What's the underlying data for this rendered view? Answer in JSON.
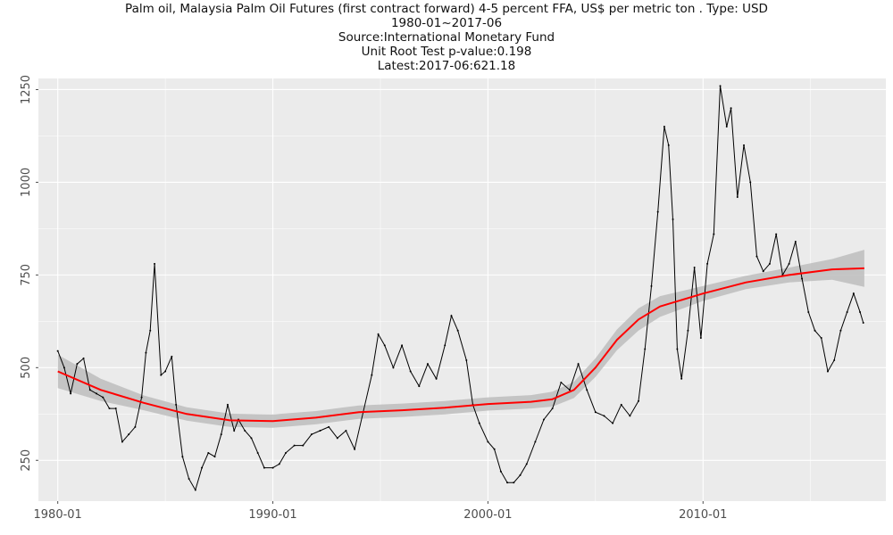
{
  "chart_data": {
    "type": "line",
    "title_lines": [
      "Palm oil, Malaysia Palm Oil Futures (first contract forward) 4-5 percent FFA, US$ per metric ton . Type: USD",
      "1980-01~2017-06",
      "Source:International Monetary Fund",
      "Unit Root Test p-value:0.198",
      "Latest:2017-06:621.18"
    ],
    "xlabel": "",
    "ylabel": "",
    "x_ticks": [
      "1980-01",
      "1990-01",
      "2000-01",
      "2010-01"
    ],
    "y_ticks": [
      250,
      500,
      750,
      1000,
      1250
    ],
    "xlim": [
      1979.1,
      2018.5
    ],
    "ylim": [
      140,
      1280
    ],
    "grid": true,
    "colors": {
      "panel": "#ebebeb",
      "grid_major": "#ffffff",
      "line": "#000000",
      "smooth": "#ff0000",
      "band": "#bdbdbd"
    },
    "series": [
      {
        "kind": "price",
        "x": [
          1980.0,
          1980.3,
          1980.6,
          1980.9,
          1981.2,
          1981.5,
          1981.8,
          1982.1,
          1982.4,
          1982.7,
          1983.0,
          1983.3,
          1983.6,
          1983.9,
          1984.1,
          1984.3,
          1984.5,
          1984.8,
          1985.0,
          1985.3,
          1985.5,
          1985.8,
          1986.1,
          1986.4,
          1986.7,
          1987.0,
          1987.3,
          1987.6,
          1987.9,
          1988.2,
          1988.4,
          1988.7,
          1989.0,
          1989.3,
          1989.6,
          1990.0,
          1990.3,
          1990.6,
          1991.0,
          1991.4,
          1991.8,
          1992.2,
          1992.6,
          1993.0,
          1993.4,
          1993.8,
          1994.2,
          1994.6,
          1994.9,
          1995.2,
          1995.6,
          1996.0,
          1996.4,
          1996.8,
          1997.2,
          1997.6,
          1998.0,
          1998.3,
          1998.6,
          1999.0,
          1999.3,
          1999.6,
          2000.0,
          2000.3,
          2000.6,
          2000.9,
          2001.2,
          2001.5,
          2001.8,
          2002.2,
          2002.6,
          2003.0,
          2003.4,
          2003.8,
          2004.2,
          2004.6,
          2005.0,
          2005.4,
          2005.8,
          2006.2,
          2006.6,
          2007.0,
          2007.3,
          2007.6,
          2007.9,
          2008.2,
          2008.4,
          2008.6,
          2008.8,
          2009.0,
          2009.3,
          2009.6,
          2009.9,
          2010.2,
          2010.5,
          2010.8,
          2011.1,
          2011.3,
          2011.6,
          2011.9,
          2012.2,
          2012.5,
          2012.8,
          2013.1,
          2013.4,
          2013.7,
          2014.0,
          2014.3,
          2014.6,
          2014.9,
          2015.2,
          2015.5,
          2015.8,
          2016.1,
          2016.4,
          2016.7,
          2017.0,
          2017.3,
          2017.45
        ],
        "y": [
          545,
          500,
          430,
          510,
          525,
          440,
          430,
          420,
          390,
          390,
          300,
          320,
          340,
          420,
          540,
          600,
          780,
          480,
          490,
          530,
          400,
          260,
          200,
          170,
          230,
          270,
          260,
          320,
          400,
          330,
          360,
          330,
          310,
          270,
          230,
          230,
          240,
          270,
          290,
          290,
          320,
          330,
          340,
          310,
          330,
          280,
          380,
          480,
          590,
          560,
          500,
          560,
          490,
          450,
          510,
          470,
          560,
          640,
          600,
          520,
          400,
          350,
          300,
          280,
          220,
          190,
          190,
          210,
          240,
          300,
          360,
          390,
          460,
          440,
          510,
          440,
          380,
          370,
          350,
          400,
          370,
          410,
          550,
          720,
          920,
          1150,
          1100,
          900,
          550,
          470,
          600,
          770,
          580,
          780,
          860,
          1260,
          1150,
          1200,
          960,
          1100,
          1000,
          800,
          760,
          780,
          860,
          750,
          780,
          840,
          740,
          650,
          600,
          580,
          490,
          520,
          600,
          650,
          700,
          650,
          621
        ]
      },
      {
        "kind": "smooth",
        "x": [
          1980,
          1982,
          1984,
          1986,
          1988,
          1990,
          1992,
          1994,
          1996,
          1998,
          2000,
          2002,
          2003,
          2004,
          2005,
          2006,
          2007,
          2008,
          2010,
          2012,
          2014,
          2016,
          2017.5
        ],
        "y": [
          490,
          440,
          405,
          375,
          358,
          356,
          365,
          380,
          385,
          392,
          402,
          408,
          415,
          440,
          500,
          575,
          630,
          665,
          700,
          730,
          750,
          765,
          768
        ],
        "band_halfwidth": [
          45,
          30,
          20,
          18,
          18,
          18,
          18,
          18,
          18,
          18,
          18,
          18,
          20,
          22,
          25,
          28,
          30,
          28,
          20,
          18,
          20,
          28,
          50
        ]
      }
    ]
  }
}
